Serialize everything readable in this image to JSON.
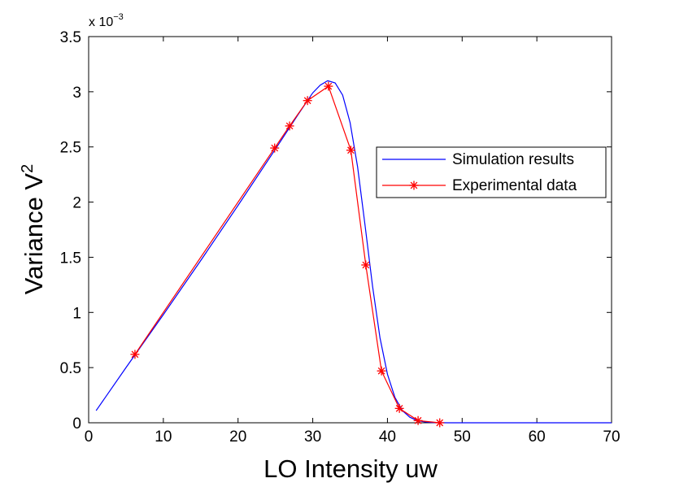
{
  "chart_data": {
    "type": "line",
    "title": "",
    "xlabel": "LO Intensity uw",
    "ylabel": "Variance V",
    "ylabel_sup": "2",
    "y_multiplier": "x 10",
    "y_multiplier_exp": "−3",
    "xlim": [
      0,
      70
    ],
    "ylim": [
      0,
      3.5
    ],
    "x_ticks": [
      0,
      10,
      20,
      30,
      40,
      50,
      60,
      70
    ],
    "x_tick_labels": [
      "0",
      "10",
      "20",
      "30",
      "40",
      "50",
      "60",
      "70"
    ],
    "y_ticks": [
      0,
      0.5,
      1,
      1.5,
      2,
      2.5,
      3,
      3.5
    ],
    "y_tick_labels": [
      "0",
      "0.5",
      "1",
      "1.5",
      "2",
      "2.5",
      "3",
      "3.5"
    ],
    "grid": false,
    "legend_position": "top-right",
    "series": [
      {
        "name": "Simulation results",
        "color": "#0000ff",
        "marker": "none",
        "x": [
          1,
          5,
          10,
          15,
          20,
          25,
          28,
          30,
          31,
          32,
          33,
          34,
          35,
          36,
          37,
          38,
          39,
          40,
          41,
          42,
          43,
          44,
          45,
          46,
          47,
          48,
          50,
          55,
          60,
          65,
          70
        ],
        "y": [
          0.11,
          0.5,
          0.98,
          1.47,
          1.97,
          2.48,
          2.79,
          2.99,
          3.06,
          3.1,
          3.08,
          2.97,
          2.72,
          2.32,
          1.79,
          1.24,
          0.77,
          0.44,
          0.23,
          0.11,
          0.05,
          0.02,
          0.008,
          0.003,
          0.001,
          0.0,
          0.0,
          0.0,
          0.0,
          0.0,
          0.0
        ]
      },
      {
        "name": "Experimental data",
        "color": "#ff0000",
        "marker": "asterisk",
        "x": [
          6.2,
          24.9,
          26.9,
          29.3,
          32.1,
          35.1,
          37.1,
          39.2,
          41.6,
          44.1,
          47.0
        ],
        "y": [
          0.62,
          2.49,
          2.69,
          2.92,
          3.05,
          2.47,
          1.43,
          0.47,
          0.13,
          0.02,
          0.0
        ]
      }
    ]
  }
}
